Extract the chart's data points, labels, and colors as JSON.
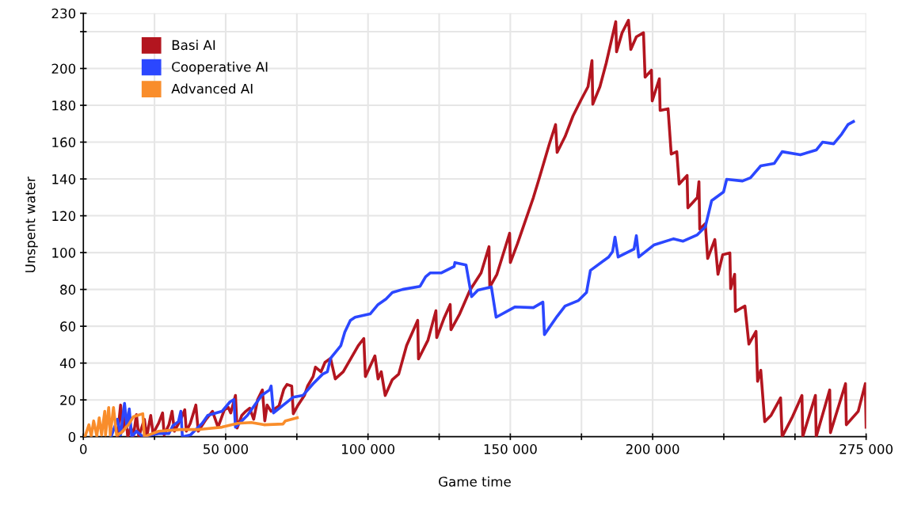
{
  "chart_data": {
    "type": "line",
    "xlabel": "Game time",
    "ylabel": "Unspent water",
    "xlim": [
      0,
      275000
    ],
    "ylim": [
      0,
      230
    ],
    "xticks": [
      0,
      {
        "value": 25000,
        "label": null
      },
      {
        "value": 50000,
        "label": "50 000"
      },
      {
        "value": 75000,
        "label": null
      },
      {
        "value": 100000,
        "label": "100 000"
      },
      {
        "value": 125000,
        "label": null
      },
      {
        "value": 150000,
        "label": "150 000"
      },
      {
        "value": 175000,
        "label": null
      },
      {
        "value": 200000,
        "label": "200 000"
      },
      {
        "value": 225000,
        "label": null
      },
      {
        "value": 250000,
        "label": null
      },
      {
        "value": 275000,
        "label": "275 000"
      }
    ],
    "yticks": [
      0,
      20,
      40,
      60,
      80,
      100,
      120,
      140,
      160,
      180,
      200,
      {
        "value": 220,
        "label": null
      },
      230
    ],
    "grid": true,
    "legend": "top left",
    "marker": "none",
    "line_style": "solid",
    "series": [
      {
        "name": "Basi AI",
        "color": "#b3151f",
        "x": [
          11970,
          13080,
          13920,
          14750,
          15590,
          16700,
          17540,
          18650,
          19480,
          21430,
          22270,
          23660,
          24490,
          26440,
          27830,
          28390,
          30060,
          31170,
          32010,
          34240,
          35630,
          36180,
          37580,
          39520,
          40360,
          43140,
          45370,
          47320,
          49540,
          50940,
          51770,
          53440,
          54000,
          55670,
          57060,
          58450,
          59840,
          61230,
          62900,
          63740,
          64570,
          65970,
          68750,
          70420,
          71530,
          73200,
          73760,
          75430,
          77660,
          78770,
          80720,
          81550,
          83500,
          84890,
          86840,
          88510,
          91300,
          96580,
          98530,
          99090,
          102430,
          103540,
          104660,
          106050,
          108550,
          110780,
          113560,
          117460,
          117740,
          121080,
          123860,
          124140,
          126650,
          128870,
          129150,
          132210,
          135830,
          139730,
          142510,
          142790,
          145290,
          149750,
          150020,
          152530,
          158100,
          160050,
          163660,
          165890,
          166450,
          169230,
          172020,
          174800,
          177300,
          178690,
          178970,
          181480,
          183700,
          187040,
          187320,
          189270,
          191500,
          192330,
          194280,
          196780,
          197340,
          199570,
          199850,
          202350,
          202630,
          205410,
          206530,
          208480,
          209310,
          212100,
          212370,
          215710,
          216270,
          216550,
          218500,
          219330,
          221840,
          222950,
          224620,
          227130,
          227400,
          228800,
          229070,
          232410,
          233810,
          236310,
          236870,
          237980,
          239370,
          241600,
          244940,
          245490,
          249110,
          252450,
          252730,
          257180,
          257460,
          262200,
          262470,
          267760,
          268040,
          272220,
          274720,
          275000
        ],
        "values": [
          0,
          17.2,
          3.0,
          13.8,
          0,
          5.2,
          0,
          12.0,
          0,
          9.5,
          0,
          11.6,
          1.7,
          7.3,
          12.9,
          0.9,
          6.5,
          13.8,
          3.0,
          9.5,
          14.6,
          3.0,
          7.3,
          17.2,
          3.0,
          9.5,
          13.8,
          5.2,
          14.6,
          15.9,
          12.9,
          22.4,
          4.7,
          11.6,
          13.8,
          15.5,
          9.5,
          20.2,
          25.4,
          8.6,
          17.2,
          13.8,
          16.8,
          25.8,
          28.4,
          27.5,
          12.5,
          17.2,
          22.4,
          27.5,
          32.7,
          37.8,
          35.3,
          40.4,
          42.6,
          31.4,
          35.3,
          49.5,
          53.3,
          32.7,
          43.9,
          31.4,
          35.3,
          22.4,
          31.0,
          34.0,
          49.5,
          63.2,
          42.2,
          52.5,
          68.4,
          53.8,
          64.1,
          71.8,
          58.1,
          66.7,
          79.6,
          89.0,
          103.2,
          81.3,
          88.2,
          110.5,
          94.6,
          104.9,
          129.9,
          139.8,
          158.7,
          169.5,
          154.4,
          163.0,
          174.2,
          182.8,
          190.1,
          204.3,
          180.6,
          190.1,
          203.0,
          225.4,
          209.0,
          219.4,
          226.2,
          210.3,
          217.2,
          219.4,
          195.3,
          199.1,
          182.4,
          194.4,
          177.2,
          178.1,
          153.5,
          154.8,
          137.2,
          141.9,
          124.3,
          129.9,
          138.5,
          112.7,
          115.7,
          96.8,
          107.1,
          88.2,
          98.9,
          99.8,
          80.4,
          88.2,
          68.0,
          71.0,
          50.3,
          57.2,
          30.1,
          36.1,
          8.2,
          11.6,
          21.1,
          0,
          10.8,
          22.4,
          0,
          22.4,
          0,
          25.4,
          2.2,
          28.8,
          6.5,
          13.8,
          28.8,
          5.2
        ]
      },
      {
        "name": "Cooperative AI",
        "color": "#2b47ff",
        "x": [
          9740,
          11970,
          13080,
          14470,
          15310,
          16140,
          16980,
          18650,
          20880,
          26440,
          30060,
          31450,
          33400,
          34240,
          34790,
          37580,
          41750,
          43700,
          48710,
          51490,
          52880,
          53440,
          57620,
          62630,
          65410,
          65970,
          66800,
          70980,
          73760,
          77100,
          80720,
          84060,
          85730,
          86840,
          90460,
          91850,
          93800,
          95470,
          100760,
          103540,
          106330,
          108550,
          112170,
          118290,
          120240,
          121910,
          125810,
          130260,
          130540,
          134440,
          136390,
          138610,
          143340,
          145010,
          151700,
          158100,
          161440,
          161990,
          166450,
          169230,
          173960,
          176750,
          178140,
          184540,
          185930,
          186770,
          187880,
          193450,
          194280,
          195120,
          200400,
          207360,
          210700,
          215710,
          218500,
          220720,
          224900,
          226010,
          231580,
          234360,
          237980,
          242710,
          245490,
          251900,
          257460,
          259690,
          263590,
          266370,
          268600,
          270550
        ],
        "values": [
          0,
          9.5,
          0.9,
          18.1,
          5.2,
          15.1,
          0,
          3.0,
          0,
          1.7,
          1.7,
          6.0,
          8.2,
          13.8,
          0,
          0.9,
          7.3,
          11.6,
          13.8,
          18.9,
          20.2,
          5.2,
          11.6,
          22.4,
          25.4,
          27.5,
          12.9,
          18.1,
          21.5,
          22.4,
          28.8,
          34.0,
          35.3,
          42.6,
          49.5,
          56.8,
          63.2,
          64.9,
          66.7,
          71.8,
          74.8,
          78.3,
          80.0,
          81.7,
          86.9,
          89.0,
          89.0,
          92.5,
          94.6,
          93.3,
          76.1,
          79.6,
          81.3,
          64.9,
          70.5,
          70.1,
          73.1,
          55.5,
          65.4,
          71.0,
          74.0,
          78.3,
          90.3,
          97.6,
          100.6,
          108.4,
          97.6,
          101.9,
          109.2,
          97.6,
          104.1,
          107.5,
          106.2,
          109.7,
          114.0,
          128.2,
          132.9,
          139.8,
          138.9,
          140.6,
          147.1,
          148.4,
          154.8,
          153.1,
          155.7,
          160.0,
          159.1,
          164.3,
          169.5,
          171.2
        ]
      },
      {
        "name": "Advanced AI",
        "color": "#f98d2b",
        "x": [
          560,
          1950,
          2780,
          3620,
          4730,
          5570,
          6400,
          7520,
          7790,
          8910,
          9460,
          10580,
          11690,
          13360,
          15870,
          17540,
          20880,
          21430,
          26440,
          33960,
          40360,
          48710,
          54280,
          59010,
          63460,
          70140,
          70980,
          75150
        ],
        "values": [
          0,
          6.5,
          0.4,
          8.6,
          0.4,
          10.3,
          0.9,
          13.8,
          0.9,
          15.9,
          0.9,
          15.9,
          0.9,
          2.2,
          6.5,
          10.8,
          12.5,
          0,
          3.0,
          3.9,
          3.9,
          5.2,
          7.3,
          7.7,
          6.5,
          6.9,
          8.6,
          10.3
        ]
      }
    ]
  }
}
